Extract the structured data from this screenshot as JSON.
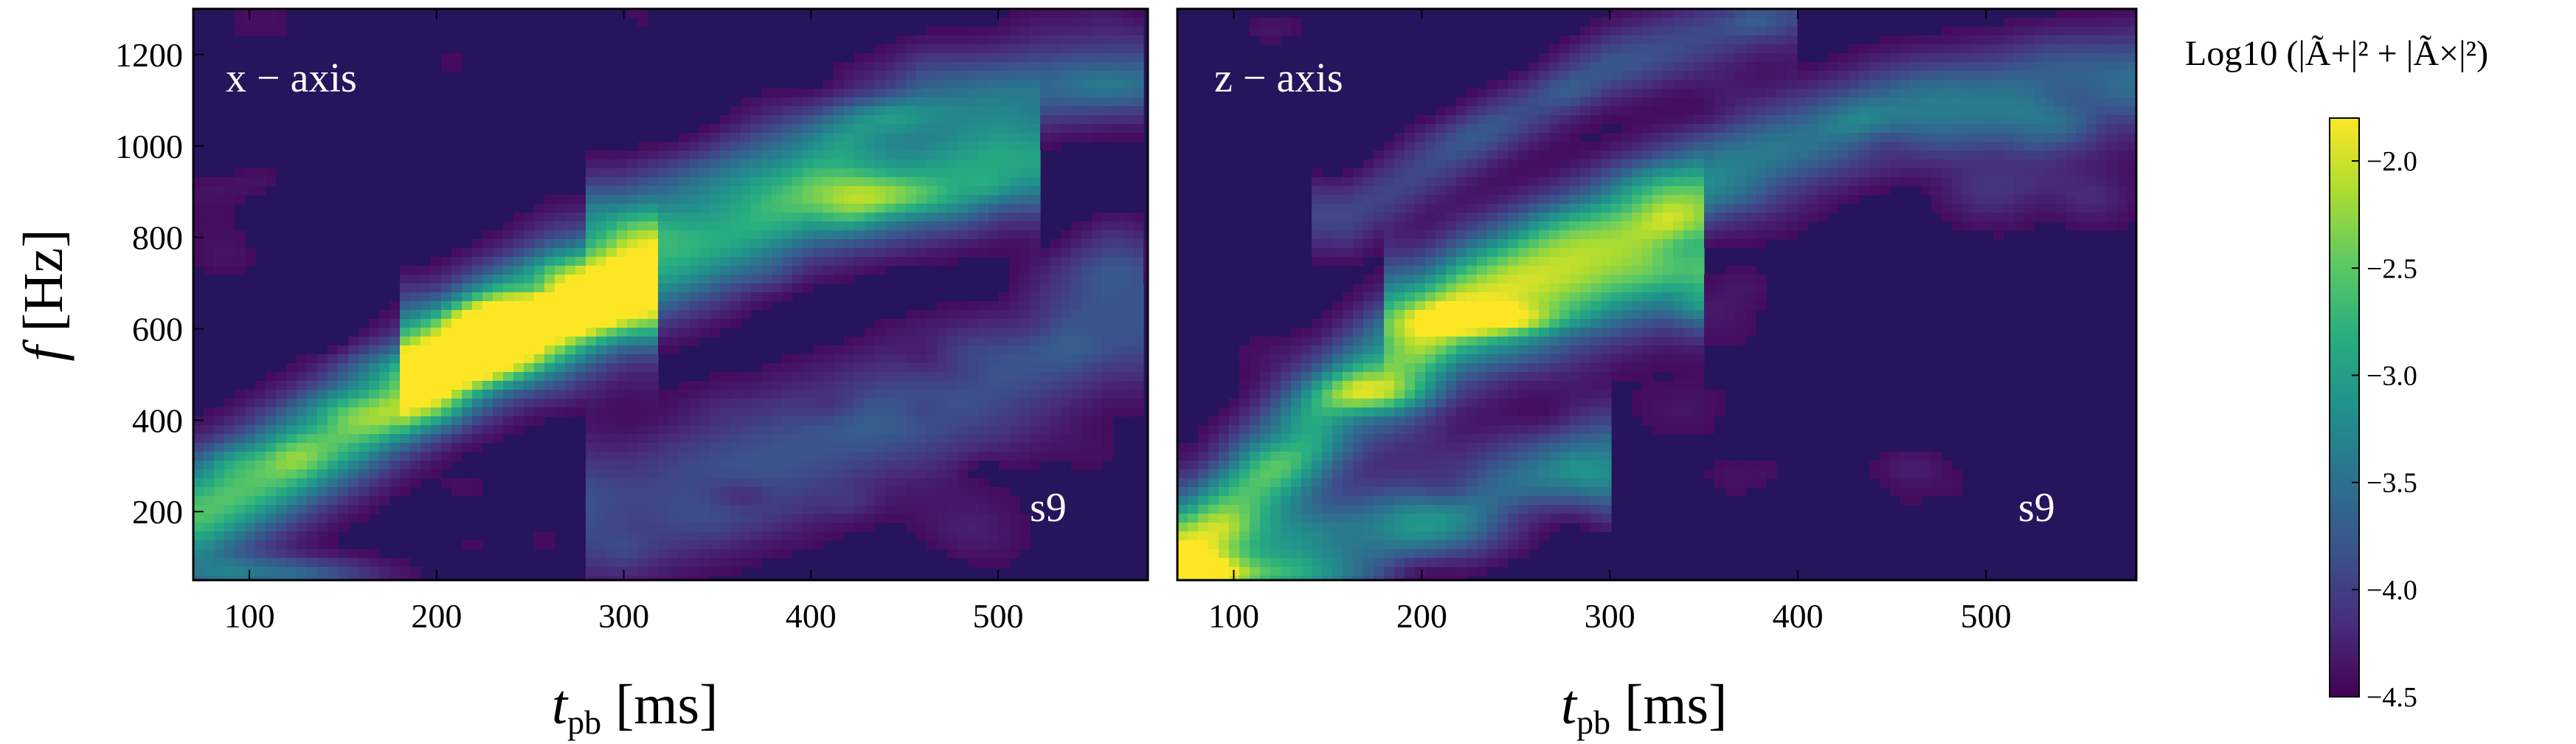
{
  "chart_data": [
    {
      "type": "heatmap",
      "panel_label": "x − axis",
      "model_label": "s9",
      "xlabel": {
        "main": "t",
        "sub": "pb",
        "unit": " [ms]"
      },
      "ylabel": {
        "main": "f",
        "unit": " [Hz]"
      },
      "xlim": [
        70,
        580
      ],
      "ylim": [
        50,
        1300
      ],
      "xticks": [
        100,
        200,
        300,
        400,
        500
      ],
      "yticks": [
        200,
        400,
        600,
        800,
        1000,
        1200
      ],
      "color_range": [
        -4.5,
        -1.8
      ],
      "ridges": [
        {
          "t": [
            75,
            120,
            170,
            220,
            260,
            300
          ],
          "f": [
            200,
            300,
            420,
            560,
            640,
            670
          ],
          "w": 120,
          "amp": 1.0
        },
        {
          "t": [
            200,
            260,
            330,
            400,
            450,
            500
          ],
          "f": [
            550,
            650,
            750,
            870,
            910,
            960
          ],
          "w": 110,
          "amp": 0.8
        },
        {
          "t": [
            300,
            400,
            460,
            560
          ],
          "f": [
            850,
            1000,
            1100,
            1150
          ],
          "w": 90,
          "amp": 0.45
        },
        {
          "t": [
            300,
            380,
            460,
            560
          ],
          "f": [
            200,
            320,
            420,
            620
          ],
          "w": 150,
          "amp": 0.35
        }
      ],
      "hotspots": [
        {
          "t": 245,
          "f": 620,
          "st": 35,
          "sf": 35,
          "amp": 0.5
        },
        {
          "t": 175,
          "f": 420,
          "st": 40,
          "sf": 50,
          "amp": 0.5
        },
        {
          "t": 215,
          "f": 520,
          "st": 40,
          "sf": 50,
          "amp": 0.45
        },
        {
          "t": 115,
          "f": 60,
          "st": 50,
          "sf": 40,
          "amp": 0.5
        },
        {
          "t": 440,
          "f": 890,
          "st": 35,
          "sf": 40,
          "amp": 0.35
        },
        {
          "t": 440,
          "f": 1070,
          "st": 30,
          "sf": 40,
          "amp": 0.3
        }
      ]
    },
    {
      "type": "heatmap",
      "panel_label": "z − axis",
      "model_label": "s9",
      "xlabel": {
        "main": "t",
        "sub": "pb",
        "unit": " [ms]"
      },
      "xlim": [
        70,
        580
      ],
      "ylim": [
        50,
        1300
      ],
      "xticks": [
        100,
        200,
        300,
        400,
        500
      ],
      "color_range": [
        -4.5,
        -1.8
      ],
      "ridges": [
        {
          "t": [
            75,
            120,
            170,
            220,
            270,
            330
          ],
          "f": [
            120,
            300,
            480,
            620,
            680,
            760
          ],
          "w": 130,
          "amp": 0.95
        },
        {
          "t": [
            200,
            280,
            360,
            440,
            520,
            580
          ],
          "f": [
            650,
            800,
            950,
            1050,
            1100,
            1130
          ],
          "w": 110,
          "amp": 0.55
        },
        {
          "t": [
            160,
            230,
            300,
            380
          ],
          "f": [
            850,
            1020,
            1180,
            1280
          ],
          "w": 80,
          "amp": 0.3
        },
        {
          "t": [
            90,
            150,
            220,
            280
          ],
          "f": [
            70,
            120,
            200,
            300
          ],
          "w": 110,
          "amp": 0.6
        }
      ],
      "hotspots": [
        {
          "t": 235,
          "f": 620,
          "st": 35,
          "sf": 30,
          "amp": 0.55
        },
        {
          "t": 175,
          "f": 460,
          "st": 30,
          "sf": 40,
          "amp": 0.45
        },
        {
          "t": 110,
          "f": 60,
          "st": 45,
          "sf": 40,
          "amp": 0.45
        },
        {
          "t": 510,
          "f": 900,
          "st": 45,
          "sf": 60,
          "amp": 0.2
        }
      ]
    }
  ],
  "colorbar": {
    "label_prefix": "Log10",
    "label_formula": "(|Ã+|² + |Ã×|²)",
    "range": [
      -4.5,
      -1.8
    ],
    "ticks": [
      -2.0,
      -2.5,
      -3.0,
      -3.5,
      -4.0,
      -4.5
    ],
    "tick_labels": [
      "−2.0",
      "−2.5",
      "−3.0",
      "−3.5",
      "−4.0",
      "−4.5"
    ],
    "colormap": [
      "#440154",
      "#472d7b",
      "#3b528b",
      "#2c728e",
      "#21918c",
      "#28ae80",
      "#5ec962",
      "#addc30",
      "#fde725"
    ]
  }
}
